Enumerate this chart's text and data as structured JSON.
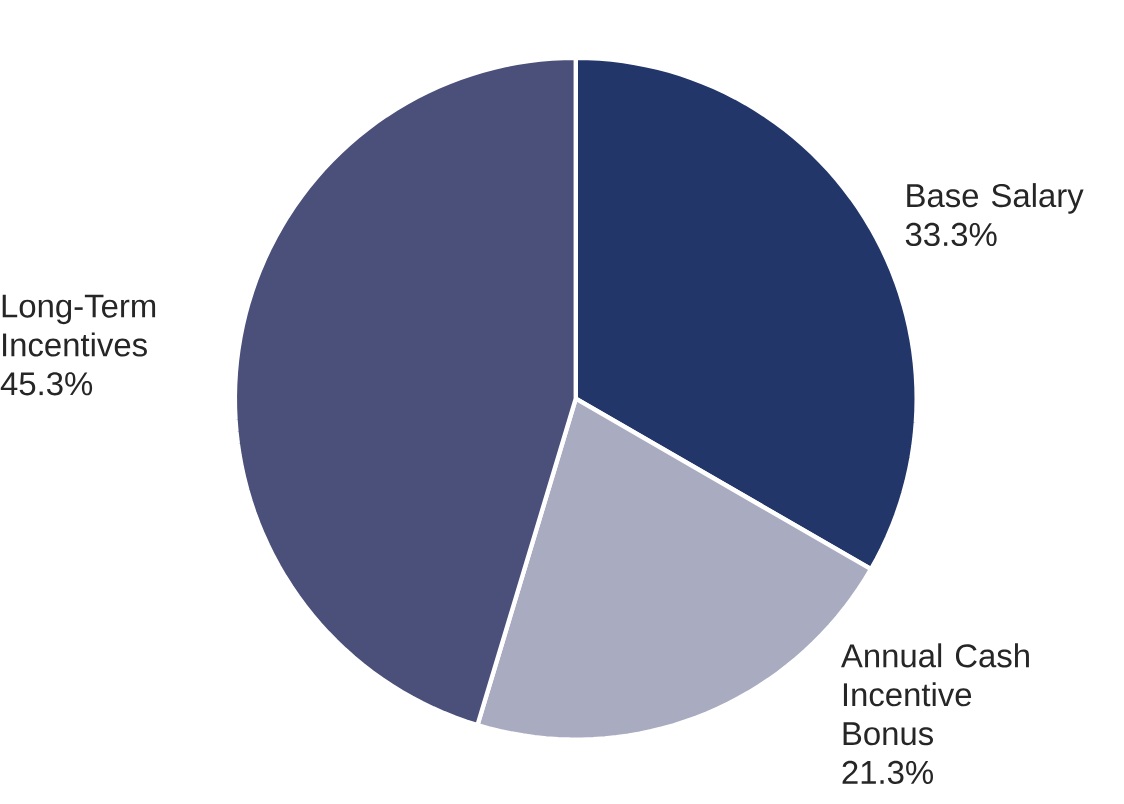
{
  "chart_data": {
    "type": "pie",
    "categories": [
      "Base Salary",
      "Annual Cash Incentive Bonus",
      "Long-Term Incentives"
    ],
    "values": [
      33.3,
      21.3,
      45.3
    ],
    "value_labels": [
      "33.3%",
      "21.3%",
      "45.3%"
    ],
    "colors": [
      "#22366a",
      "#a9abc0",
      "#4a5079"
    ]
  }
}
